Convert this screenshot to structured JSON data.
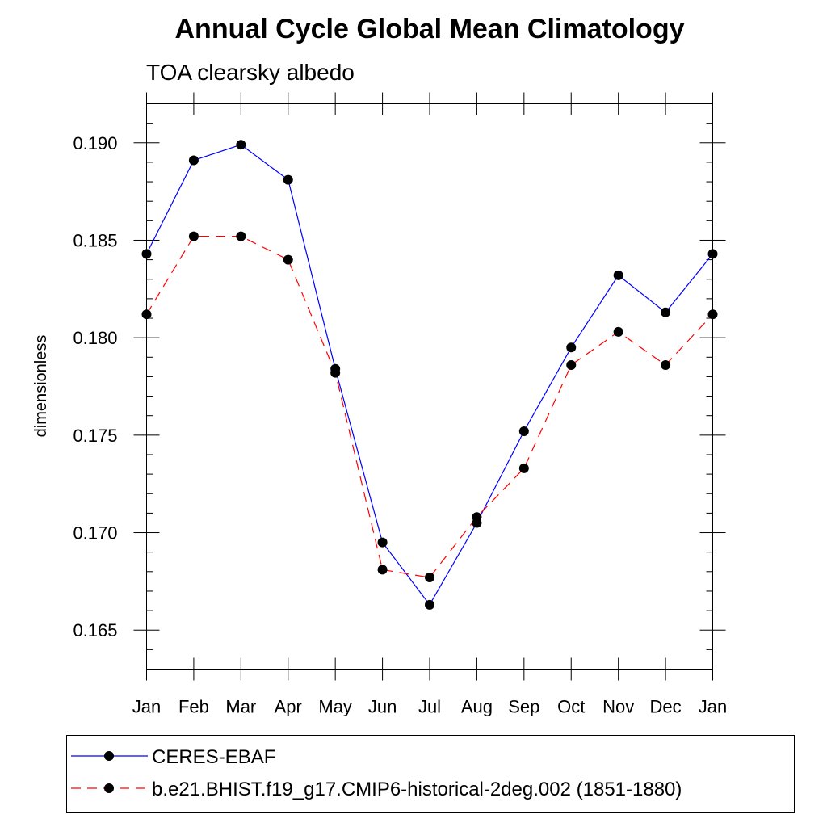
{
  "chart_data": {
    "type": "line",
    "title": "Annual Cycle Global Mean Climatology",
    "subtitle": "TOA clearsky albedo",
    "xlabel": "",
    "ylabel": "dimensionless",
    "categories": [
      "Jan",
      "Feb",
      "Mar",
      "Apr",
      "May",
      "Jun",
      "Jul",
      "Aug",
      "Sep",
      "Oct",
      "Nov",
      "Dec",
      "Jan"
    ],
    "ylim": [
      0.163,
      0.192
    ],
    "yticks": [
      "0.165",
      "0.170",
      "0.175",
      "0.180",
      "0.185",
      "0.190"
    ],
    "series": [
      {
        "name": "CERES-EBAF",
        "color": "#0000ff",
        "dash": "solid",
        "values": [
          0.1843,
          0.1891,
          0.1899,
          0.1881,
          0.1784,
          0.1695,
          0.1663,
          0.1705,
          0.1752,
          0.1795,
          0.1832,
          0.1813,
          0.1843
        ]
      },
      {
        "name": "b.e21.BHIST.f19_g17.CMIP6-historical-2deg.002 (1851-1880)",
        "color": "#ff0000",
        "dash": "dashed",
        "values": [
          0.1812,
          0.1852,
          0.1852,
          0.184,
          0.1782,
          0.1681,
          0.1677,
          0.1708,
          0.1733,
          0.1786,
          0.1803,
          0.1786,
          0.1812
        ]
      }
    ],
    "marker": "filled-circle",
    "marker_color": "#000000",
    "legend_position": "bottom"
  }
}
